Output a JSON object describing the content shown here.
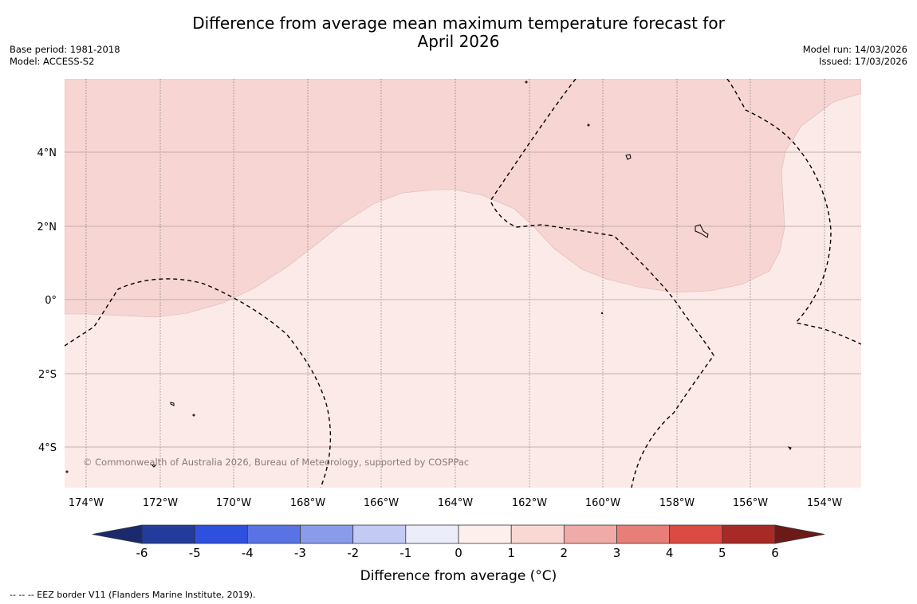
{
  "header": {
    "title_line1": "Difference from average mean maximum temperature forecast for",
    "title_line2": "April 2026",
    "base_period": "Base period: 1981-2018",
    "model": "Model: ACCESS-S2",
    "model_run": "Model run: 14/03/2026",
    "issued": "Issued: 17/03/2026"
  },
  "map": {
    "lon_labels": [
      "174°W",
      "172°W",
      "170°W",
      "168°W",
      "166°W",
      "164°W",
      "162°W",
      "160°W",
      "158°W",
      "156°W",
      "154°W"
    ],
    "lat_labels": [
      "4°N",
      "2°N",
      "0°",
      "2°S",
      "4°S"
    ],
    "copyright": "© Commonwealth of Australia 2026, Bureau of Meteorology, supported by COSPPac",
    "region_colors": {
      "zero_to_one": "#fbeae8",
      "one_to_two": "#f6d5d3"
    }
  },
  "colorbar": {
    "title": "Difference from average (°C)",
    "tick_labels": [
      "-6",
      "-5",
      "-4",
      "-3",
      "-2",
      "-1",
      "0",
      "1",
      "2",
      "3",
      "4",
      "5",
      "6"
    ],
    "colors": [
      "#233c9c",
      "#2f4fde",
      "#5a73e4",
      "#8a9bea",
      "#c3caf4",
      "#ecedfb",
      "#fcefec",
      "#f9d7d3",
      "#efaba7",
      "#e87e78",
      "#dc4b43",
      "#a82a26"
    ],
    "extend_low_color": "#1a2a6c",
    "extend_high_color": "#6b1a18"
  },
  "footer": {
    "legend_text": "--  --  -- EEZ border V11 (Flanders Marine Institute, 2019)."
  }
}
